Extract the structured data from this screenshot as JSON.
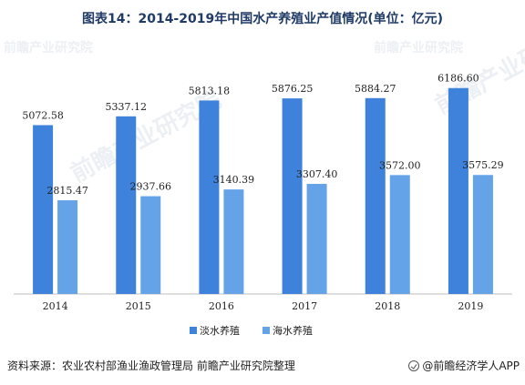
{
  "chart_data": {
    "type": "bar",
    "title": "图表14：2014-2019年中国水产养殖业产值情况(单位：亿元)",
    "categories": [
      "2014",
      "2015",
      "2016",
      "2017",
      "2018",
      "2019"
    ],
    "series": [
      {
        "name": "淡水养殖",
        "values": [
          5072.58,
          5337.12,
          5813.18,
          5876.25,
          5884.27,
          6186.6
        ],
        "labels": [
          "5072.58",
          "5337.12",
          "5813.18",
          "5876.25",
          "5884.27",
          "6186.60"
        ],
        "color": "#3e82dc"
      },
      {
        "name": "海水养殖",
        "values": [
          2815.47,
          2937.66,
          3140.39,
          3307.4,
          3572.0,
          3575.29
        ],
        "labels": [
          "2815.47",
          "2937.66",
          "3140.39",
          "3307.40",
          "3572.00",
          "3575.29"
        ],
        "color": "#65a3e8"
      }
    ],
    "ylim": [
      0,
      7000
    ],
    "grid": false,
    "legend_position": "bottom"
  },
  "footer": {
    "source": "资料来源：农业农村部渔业渔政管理局 前瞻产业研究院整理",
    "credit_icon": "check-circle-icon",
    "credit": "@前瞻经济学人APP"
  },
  "watermark": {
    "text": "前瞻产业研究院"
  }
}
